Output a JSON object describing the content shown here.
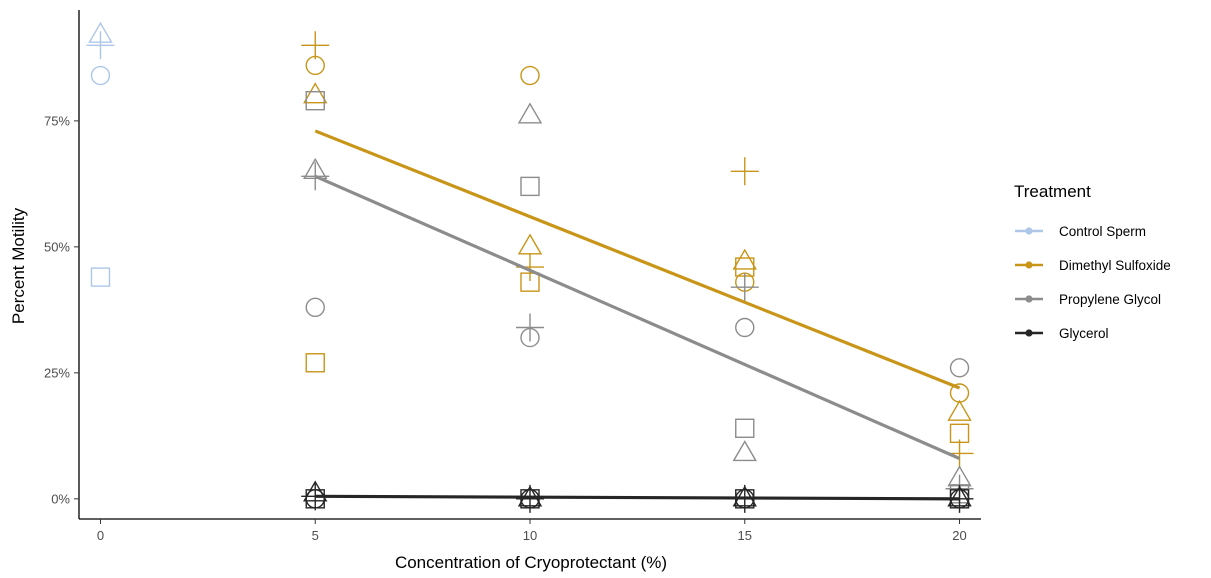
{
  "chart_data": {
    "type": "scatter",
    "xlabel": "Concentration of Cryoprotectant (%)",
    "ylabel": "Percent Motility",
    "xlim": [
      -0.5,
      20.5
    ],
    "ylim": [
      -0.04,
      0.97
    ],
    "x_ticks": [
      0,
      5,
      10,
      15,
      20
    ],
    "x_tick_labels": [
      "0",
      "5",
      "10",
      "15",
      "20"
    ],
    "y_ticks": [
      0,
      0.25,
      0.5,
      0.75
    ],
    "y_tick_labels": [
      "0%",
      "25%",
      "50%",
      "75%"
    ],
    "grid": false,
    "legend": {
      "title": "Treatment",
      "position": "right",
      "entries": [
        "Control Sperm",
        "Dimethyl Sulfoxide",
        "Propylene Glycol",
        "Glycerol"
      ]
    },
    "series": [
      {
        "name": "Control Sperm",
        "color": "#aec7e8",
        "points": [
          {
            "x": 0,
            "y": 0.9,
            "shape": "plus"
          },
          {
            "x": 0,
            "y": 0.84,
            "shape": "circle"
          },
          {
            "x": 0,
            "y": 0.44,
            "shape": "square"
          },
          {
            "x": 0,
            "y": 0.92,
            "shape": "triangle"
          }
        ]
      },
      {
        "name": "Dimethyl Sulfoxide",
        "color": "#c99518",
        "trend": [
          [
            5,
            0.73
          ],
          [
            20,
            0.22
          ]
        ],
        "points": [
          {
            "x": 5,
            "y": 0.9,
            "shape": "plus"
          },
          {
            "x": 5,
            "y": 0.86,
            "shape": "circle"
          },
          {
            "x": 5,
            "y": 0.27,
            "shape": "square"
          },
          {
            "x": 5,
            "y": 0.8,
            "shape": "triangle"
          },
          {
            "x": 10,
            "y": 0.46,
            "shape": "plus"
          },
          {
            "x": 10,
            "y": 0.84,
            "shape": "circle"
          },
          {
            "x": 10,
            "y": 0.43,
            "shape": "square"
          },
          {
            "x": 10,
            "y": 0.5,
            "shape": "triangle"
          },
          {
            "x": 15,
            "y": 0.65,
            "shape": "plus"
          },
          {
            "x": 15,
            "y": 0.43,
            "shape": "circle"
          },
          {
            "x": 15,
            "y": 0.46,
            "shape": "square"
          },
          {
            "x": 15,
            "y": 0.47,
            "shape": "triangle"
          },
          {
            "x": 20,
            "y": 0.09,
            "shape": "plus"
          },
          {
            "x": 20,
            "y": 0.21,
            "shape": "circle"
          },
          {
            "x": 20,
            "y": 0.13,
            "shape": "square"
          },
          {
            "x": 20,
            "y": 0.17,
            "shape": "triangle"
          }
        ]
      },
      {
        "name": "Propylene Glycol",
        "color": "#8c8c8c",
        "trend": [
          [
            5,
            0.64
          ],
          [
            20,
            0.08
          ]
        ],
        "points": [
          {
            "x": 5,
            "y": 0.64,
            "shape": "plus"
          },
          {
            "x": 5,
            "y": 0.38,
            "shape": "circle"
          },
          {
            "x": 5,
            "y": 0.79,
            "shape": "square"
          },
          {
            "x": 5,
            "y": 0.65,
            "shape": "triangle"
          },
          {
            "x": 10,
            "y": 0.34,
            "shape": "plus"
          },
          {
            "x": 10,
            "y": 0.32,
            "shape": "circle"
          },
          {
            "x": 10,
            "y": 0.62,
            "shape": "square"
          },
          {
            "x": 10,
            "y": 0.76,
            "shape": "triangle"
          },
          {
            "x": 15,
            "y": 0.42,
            "shape": "plus"
          },
          {
            "x": 15,
            "y": 0.34,
            "shape": "circle"
          },
          {
            "x": 15,
            "y": 0.14,
            "shape": "square"
          },
          {
            "x": 15,
            "y": 0.09,
            "shape": "triangle"
          },
          {
            "x": 20,
            "y": 0.02,
            "shape": "plus"
          },
          {
            "x": 20,
            "y": 0.26,
            "shape": "circle"
          },
          {
            "x": 20,
            "y": 0.01,
            "shape": "square"
          },
          {
            "x": 20,
            "y": 0.04,
            "shape": "triangle"
          }
        ]
      },
      {
        "name": "Glycerol",
        "color": "#262626",
        "trend": [
          [
            5,
            0.005
          ],
          [
            20,
            0.0
          ]
        ],
        "points": [
          {
            "x": 5,
            "y": 0.005,
            "shape": "plus"
          },
          {
            "x": 5,
            "y": 0.0,
            "shape": "circle"
          },
          {
            "x": 5,
            "y": 0.0,
            "shape": "square"
          },
          {
            "x": 5,
            "y": 0.01,
            "shape": "triangle"
          },
          {
            "x": 10,
            "y": 0.0,
            "shape": "plus"
          },
          {
            "x": 10,
            "y": 0.0,
            "shape": "circle"
          },
          {
            "x": 10,
            "y": 0.0,
            "shape": "square"
          },
          {
            "x": 10,
            "y": 0.0,
            "shape": "triangle"
          },
          {
            "x": 15,
            "y": 0.0,
            "shape": "plus"
          },
          {
            "x": 15,
            "y": 0.0,
            "shape": "circle"
          },
          {
            "x": 15,
            "y": 0.0,
            "shape": "square"
          },
          {
            "x": 15,
            "y": 0.0,
            "shape": "triangle"
          },
          {
            "x": 20,
            "y": 0.0,
            "shape": "plus"
          },
          {
            "x": 20,
            "y": 0.0,
            "shape": "circle"
          },
          {
            "x": 20,
            "y": 0.0,
            "shape": "square"
          },
          {
            "x": 20,
            "y": 0.0,
            "shape": "triangle"
          }
        ]
      }
    ]
  }
}
